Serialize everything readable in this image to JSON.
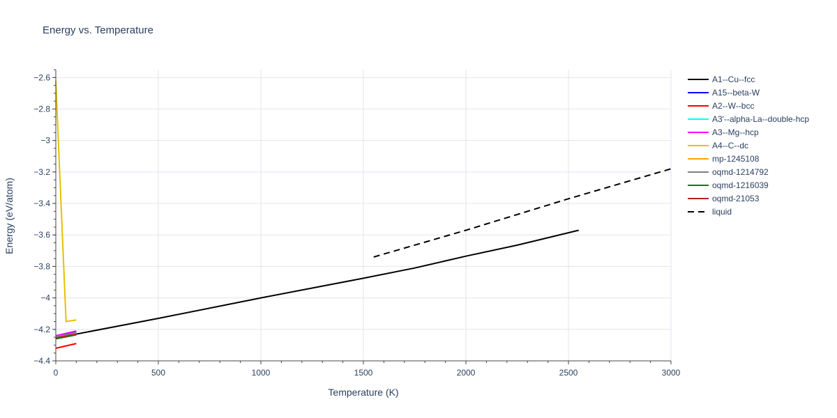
{
  "chart_data": {
    "type": "line",
    "title": "Energy vs. Temperature",
    "xlabel": "Temperature (K)",
    "ylabel": "Energy (eV/atom)",
    "xlim": [
      0,
      3000
    ],
    "ylim": [
      -4.4,
      -2.55
    ],
    "xticks": [
      0,
      500,
      1000,
      1500,
      2000,
      2500,
      3000
    ],
    "xtick_labels": [
      "0",
      "500",
      "1000",
      "1500",
      "2000",
      "2500",
      "3000"
    ],
    "yticks": [
      -4.4,
      -4.2,
      -4.0,
      -3.8,
      -3.6,
      -3.4,
      -3.2,
      -3.0,
      -2.8,
      -2.6
    ],
    "ytick_labels": [
      "−4.4",
      "−4.2",
      "−4",
      "−3.8",
      "−3.6",
      "−3.4",
      "−3.2",
      "−3",
      "−2.8",
      "−2.6"
    ],
    "grid": true,
    "legend_position": "right",
    "series": [
      {
        "name": "A1--Cu--fcc",
        "color": "#000000",
        "dash": "solid",
        "x": [
          0,
          500,
          1000,
          1500,
          1750,
          2000,
          2250,
          2550
        ],
        "y": [
          -4.255,
          -4.13,
          -4.0,
          -3.875,
          -3.81,
          -3.735,
          -3.665,
          -3.57
        ]
      },
      {
        "name": "A15--beta-W",
        "color": "#0000ff",
        "dash": "solid",
        "x": [
          0,
          100
        ],
        "y": [
          -4.245,
          -4.215
        ]
      },
      {
        "name": "A2--W--bcc",
        "color": "#ff0000",
        "dash": "solid",
        "x": [
          0,
          100
        ],
        "y": [
          -4.32,
          -4.29
        ]
      },
      {
        "name": "A3'--alpha-La--double-hcp",
        "color": "#00ffff",
        "dash": "solid",
        "x": [
          0,
          100
        ],
        "y": [
          -4.245,
          -4.225
        ]
      },
      {
        "name": "A3--Mg--hcp",
        "color": "#ff00ff",
        "dash": "solid",
        "x": [
          0,
          100
        ],
        "y": [
          -4.24,
          -4.21
        ]
      },
      {
        "name": "A4--C--dc",
        "color": "#e5c100",
        "dash": "solid",
        "x": [
          0,
          50,
          100
        ],
        "y": [
          -2.62,
          -4.15,
          -4.14
        ]
      },
      {
        "name": "mp-1245108",
        "color": "#ffa500",
        "dash": "solid",
        "x": [
          0,
          100
        ],
        "y": [
          -4.25,
          -4.23
        ]
      },
      {
        "name": "oqmd-1214792",
        "color": "#808080",
        "dash": "solid",
        "x": [
          0,
          100
        ],
        "y": [
          -4.25,
          -4.22
        ]
      },
      {
        "name": "oqmd-1216039",
        "color": "#008000",
        "dash": "solid",
        "x": [
          0,
          100
        ],
        "y": [
          -4.26,
          -4.235
        ]
      },
      {
        "name": "oqmd-21053",
        "color": "#b22222",
        "dash": "solid",
        "x": [
          0,
          100
        ],
        "y": [
          -4.255,
          -4.23
        ]
      },
      {
        "name": "liquid",
        "color": "#000000",
        "dash": "dash",
        "x": [
          1550,
          2000,
          2500,
          3000
        ],
        "y": [
          -3.74,
          -3.57,
          -3.37,
          -3.18
        ]
      }
    ]
  }
}
